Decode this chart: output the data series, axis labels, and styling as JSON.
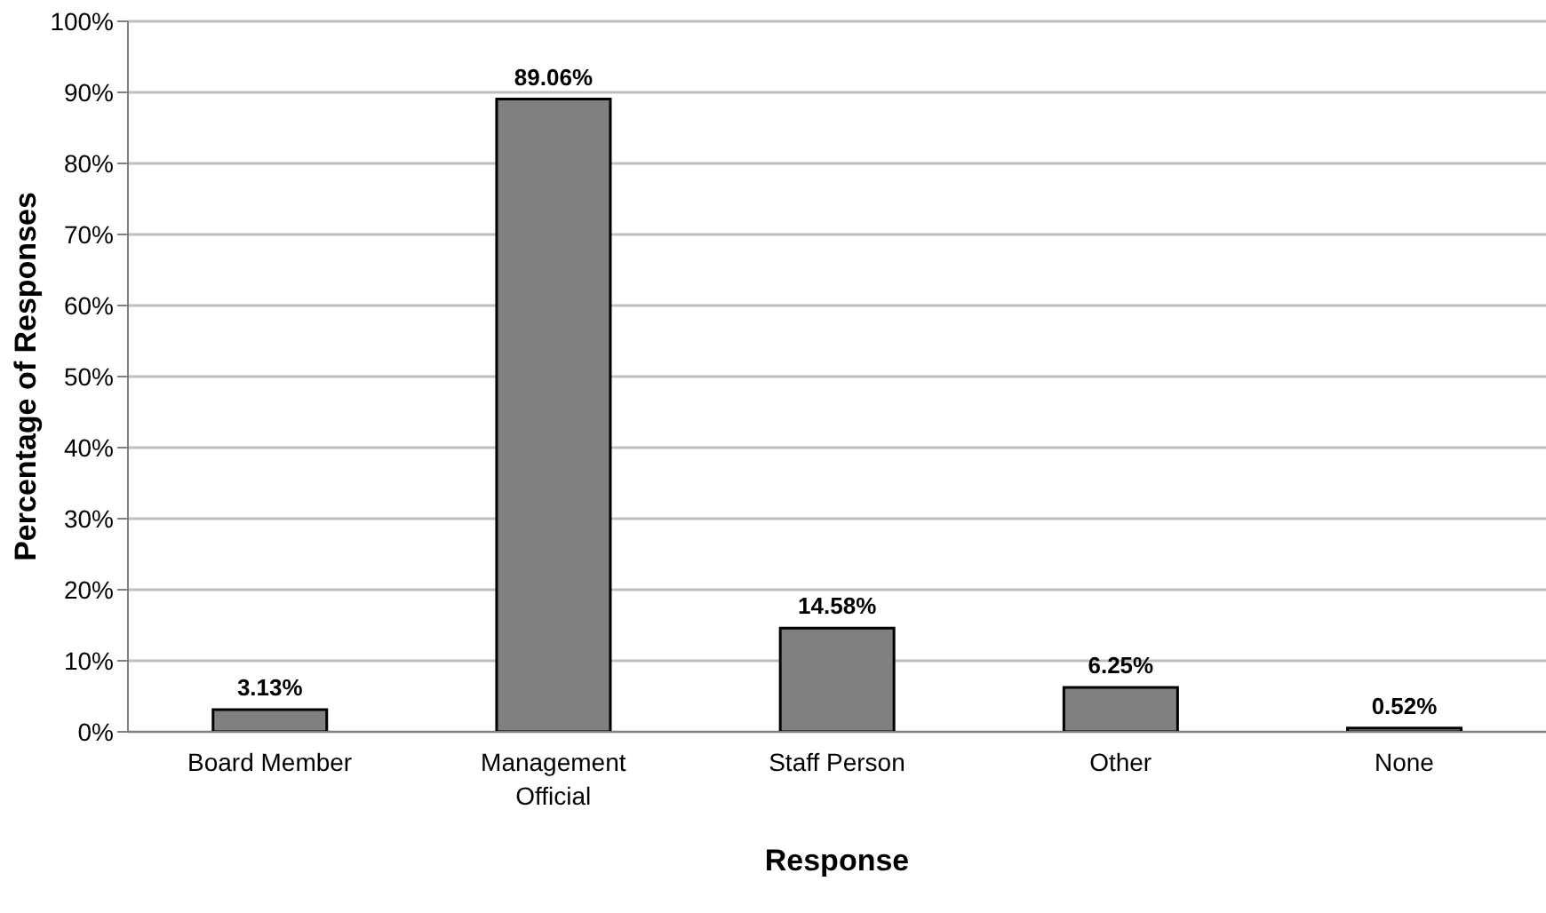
{
  "chart_data": {
    "type": "bar",
    "xlabel": "Response",
    "ylabel": "Percentage of Responses",
    "categories": [
      "Board Member",
      "Management Official",
      "Staff Person",
      "Other",
      "None"
    ],
    "values": [
      3.13,
      89.06,
      14.58,
      6.25,
      0.52
    ],
    "value_labels": [
      "3.13%",
      "89.06%",
      "14.58%",
      "6.25%",
      "0.52%"
    ],
    "color": "#808080",
    "ylim": [
      0,
      100
    ],
    "yticks": [
      {
        "value": 0,
        "label": "0%"
      },
      {
        "value": 10,
        "label": "10%"
      },
      {
        "value": 20,
        "label": "20%"
      },
      {
        "value": 30,
        "label": "30%"
      },
      {
        "value": 40,
        "label": "40%"
      },
      {
        "value": 50,
        "label": "50%"
      },
      {
        "value": 60,
        "label": "60%"
      },
      {
        "value": 70,
        "label": "70%"
      },
      {
        "value": 80,
        "label": "80%"
      },
      {
        "value": 90,
        "label": "90%"
      },
      {
        "value": 100,
        "label": "100%"
      }
    ],
    "grid": "y"
  }
}
